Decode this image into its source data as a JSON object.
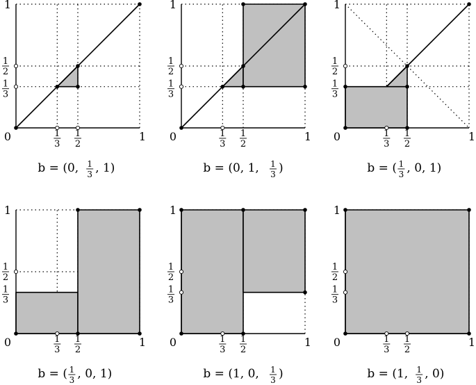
{
  "colors": {
    "region_fill": "#c0c0c0",
    "ink": "#000000"
  },
  "fractions": {
    "third": {
      "num": "1",
      "den": "3"
    },
    "half": {
      "num": "1",
      "den": "2"
    }
  },
  "axis_labels": {
    "zero": "0",
    "one": "1"
  },
  "panels": [
    {
      "caption": {
        "pre": "b = (0, ",
        "frac": "third",
        "post": ", 1)"
      },
      "diagonal": true,
      "anti_diagonal": false,
      "polygons": [
        [
          [
            0.3333,
            0.3333
          ],
          [
            0.5,
            0.5
          ],
          [
            0.5,
            0.3333
          ]
        ]
      ],
      "extra_segments": [],
      "hollow_marks_y": [
        0.5,
        0.3333
      ],
      "hollow_marks_x": [
        0.3333,
        0.5
      ],
      "dots": [
        [
          0,
          0
        ],
        [
          1,
          1
        ],
        [
          0.3333,
          0.3333
        ],
        [
          0.5,
          0.5
        ],
        [
          0.5,
          0.3333
        ]
      ]
    },
    {
      "caption": {
        "pre": "b = (0, 1, ",
        "frac": "third",
        "post": ")"
      },
      "diagonal": true,
      "anti_diagonal": false,
      "polygons": [
        [
          [
            0.3333,
            0.3333
          ],
          [
            0.5,
            0.5
          ],
          [
            0.5,
            0.3333
          ]
        ],
        [
          [
            0.5,
            0.3333
          ],
          [
            0.5,
            1
          ],
          [
            1,
            1
          ],
          [
            1,
            0.3333
          ]
        ]
      ],
      "extra_segments": [],
      "hollow_marks_y": [
        0.5,
        0.3333
      ],
      "hollow_marks_x": [
        0.3333
      ],
      "dots": [
        [
          0,
          0
        ],
        [
          0.3333,
          0.3333
        ],
        [
          0.5,
          0.5
        ],
        [
          0.5,
          0.3333
        ],
        [
          0.5,
          1
        ],
        [
          1,
          1
        ],
        [
          1,
          0.3333
        ]
      ]
    },
    {
      "caption": {
        "pre": "b = (",
        "frac": "third",
        "post": ", 0, 1)"
      },
      "diagonal": false,
      "anti_diagonal": true,
      "polygons": [
        [
          [
            0,
            0
          ],
          [
            0,
            0.3333
          ],
          [
            0.5,
            0.3333
          ],
          [
            0.5,
            0
          ]
        ],
        [
          [
            0.3333,
            0.3333
          ],
          [
            0.5,
            0.5
          ],
          [
            0.5,
            0.3333
          ]
        ]
      ],
      "extra_segments": [
        [
          [
            0.3333,
            0.3333
          ],
          [
            0.5,
            0.5
          ]
        ],
        [
          [
            0.5,
            0.5
          ],
          [
            1,
            1
          ]
        ]
      ],
      "hollow_marks_y": [
        0.5
      ],
      "hollow_marks_x": [
        0.3333
      ],
      "dots": [
        [
          0,
          0
        ],
        [
          0,
          0.3333
        ],
        [
          0.5,
          0.5
        ],
        [
          0.5,
          0.3333
        ],
        [
          0.5,
          0
        ],
        [
          1,
          1
        ]
      ]
    },
    {
      "caption": {
        "pre": "b = (",
        "frac": "third",
        "post": ", 0, 1)"
      },
      "diagonal": false,
      "anti_diagonal": false,
      "polygons": [
        [
          [
            0,
            0
          ],
          [
            0,
            0.3333
          ],
          [
            0.5,
            0.3333
          ],
          [
            0.5,
            0
          ]
        ],
        [
          [
            0.5,
            0
          ],
          [
            0.5,
            1
          ],
          [
            1,
            1
          ],
          [
            1,
            0
          ]
        ]
      ],
      "extra_segments": [],
      "hollow_marks_y": [
        0.5
      ],
      "hollow_marks_x": [
        0.3333
      ],
      "dots": [
        [
          0,
          0
        ],
        [
          0.5,
          0
        ],
        [
          1,
          0
        ],
        [
          0.5,
          1
        ],
        [
          1,
          1
        ]
      ]
    },
    {
      "caption": {
        "pre": "b = (1, 0, ",
        "frac": "third",
        "post": ")"
      },
      "diagonal": false,
      "anti_diagonal": false,
      "polygons": [
        [
          [
            0,
            0
          ],
          [
            0,
            1
          ],
          [
            0.5,
            1
          ],
          [
            0.5,
            0
          ]
        ],
        [
          [
            0.5,
            0.3333
          ],
          [
            0.5,
            1
          ],
          [
            1,
            1
          ],
          [
            1,
            0.3333
          ]
        ]
      ],
      "extra_segments": [],
      "hollow_marks_y": [
        0.5,
        0.3333
      ],
      "hollow_marks_x": [
        0.3333
      ],
      "dots": [
        [
          0,
          0
        ],
        [
          0,
          1
        ],
        [
          0.5,
          1
        ],
        [
          1,
          1
        ],
        [
          1,
          0.3333
        ],
        [
          0.5,
          0
        ]
      ]
    },
    {
      "caption": {
        "pre": "b = (1, ",
        "frac": "third",
        "post": ", 0)"
      },
      "diagonal": false,
      "anti_diagonal": false,
      "polygons": [
        [
          [
            0,
            0
          ],
          [
            0,
            1
          ],
          [
            1,
            1
          ],
          [
            1,
            0
          ]
        ]
      ],
      "extra_segments": [],
      "hollow_marks_y": [
        0.5,
        0.3333
      ],
      "hollow_marks_x": [
        0.3333,
        0.5
      ],
      "dots": [
        [
          0,
          0
        ],
        [
          0,
          1
        ],
        [
          1,
          1
        ],
        [
          1,
          0
        ]
      ]
    }
  ]
}
